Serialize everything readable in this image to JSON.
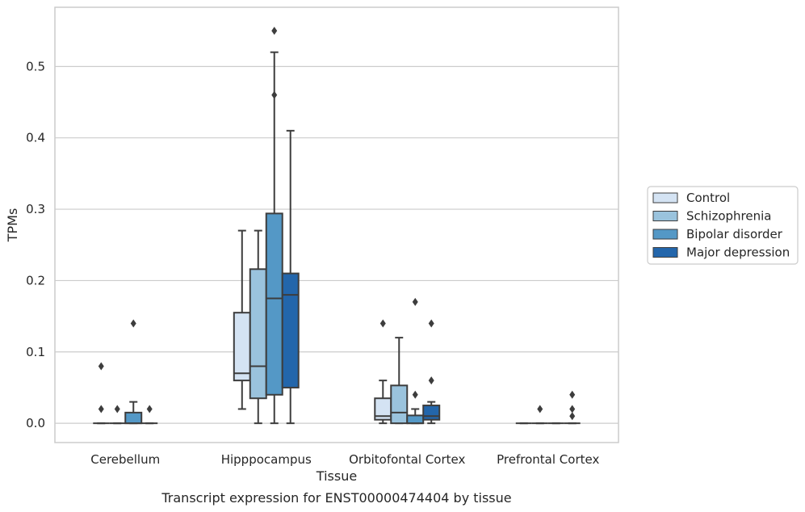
{
  "chart_data": {
    "type": "box",
    "caption": "Transcript expression for ENST00000474404 by tissue",
    "xlabel": "Tissue",
    "ylabel": "TPMs",
    "ylim": [
      -0.027,
      0.583
    ],
    "yticks": [
      0.0,
      0.1,
      0.2,
      0.3,
      0.4,
      0.5
    ],
    "ytick_labels": [
      "0.0",
      "0.1",
      "0.2",
      "0.3",
      "0.4",
      "0.5"
    ],
    "grid": true,
    "legend_position": "right",
    "categories": [
      "Cerebellum",
      "Hipppocampus",
      "Orbitofontal Cortex",
      "Prefrontal Cortex"
    ],
    "series": [
      {
        "name": "Control",
        "color": "#d4e3f3",
        "boxes": [
          {
            "whisker_low": 0.0,
            "q1": 0.0,
            "median": 0.0,
            "q3": 0.0,
            "whisker_high": 0.0,
            "outliers": [
              0.08,
              0.02
            ]
          },
          {
            "whisker_low": 0.02,
            "q1": 0.06,
            "median": 0.07,
            "q3": 0.155,
            "whisker_high": 0.27,
            "outliers": []
          },
          {
            "whisker_low": 0.0,
            "q1": 0.005,
            "median": 0.01,
            "q3": 0.035,
            "whisker_high": 0.06,
            "outliers": [
              0.14
            ]
          },
          {
            "whisker_low": 0.0,
            "q1": 0.0,
            "median": 0.0,
            "q3": 0.0,
            "whisker_high": 0.0,
            "outliers": []
          }
        ]
      },
      {
        "name": "Schizophrenia",
        "color": "#9ac3dd",
        "boxes": [
          {
            "whisker_low": 0.0,
            "q1": 0.0,
            "median": 0.0,
            "q3": 0.0,
            "whisker_high": 0.0,
            "outliers": [
              0.02
            ]
          },
          {
            "whisker_low": 0.0,
            "q1": 0.035,
            "median": 0.08,
            "q3": 0.216,
            "whisker_high": 0.27,
            "outliers": []
          },
          {
            "whisker_low": 0.0,
            "q1": 0.0,
            "median": 0.015,
            "q3": 0.053,
            "whisker_high": 0.12,
            "outliers": []
          },
          {
            "whisker_low": 0.0,
            "q1": 0.0,
            "median": 0.0,
            "q3": 0.0,
            "whisker_high": 0.0,
            "outliers": [
              0.02
            ]
          }
        ]
      },
      {
        "name": "Bipolar disorder",
        "color": "#5498c6",
        "boxes": [
          {
            "whisker_low": 0.0,
            "q1": 0.0,
            "median": 0.0,
            "q3": 0.015,
            "whisker_high": 0.03,
            "outliers": [
              0.14
            ]
          },
          {
            "whisker_low": 0.0,
            "q1": 0.04,
            "median": 0.175,
            "q3": 0.294,
            "whisker_high": 0.52,
            "outliers": [
              0.55,
              0.46
            ]
          },
          {
            "whisker_low": 0.0,
            "q1": 0.0,
            "median": 0.0,
            "q3": 0.011,
            "whisker_high": 0.02,
            "outliers": [
              0.17,
              0.04
            ]
          },
          {
            "whisker_low": 0.0,
            "q1": 0.0,
            "median": 0.0,
            "q3": 0.0,
            "whisker_high": 0.0,
            "outliers": []
          }
        ]
      },
      {
        "name": "Major depression",
        "color": "#2366ab",
        "boxes": [
          {
            "whisker_low": 0.0,
            "q1": 0.0,
            "median": 0.0,
            "q3": 0.0,
            "whisker_high": 0.0,
            "outliers": [
              0.02
            ]
          },
          {
            "whisker_low": 0.0,
            "q1": 0.05,
            "median": 0.18,
            "q3": 0.21,
            "whisker_high": 0.41,
            "outliers": []
          },
          {
            "whisker_low": 0.0,
            "q1": 0.005,
            "median": 0.01,
            "q3": 0.025,
            "whisker_high": 0.03,
            "outliers": [
              0.14,
              0.06
            ]
          },
          {
            "whisker_low": 0.0,
            "q1": 0.0,
            "median": 0.0,
            "q3": 0.0,
            "whisker_high": 0.0,
            "outliers": [
              0.04,
              0.02,
              0.01
            ]
          }
        ]
      }
    ]
  }
}
